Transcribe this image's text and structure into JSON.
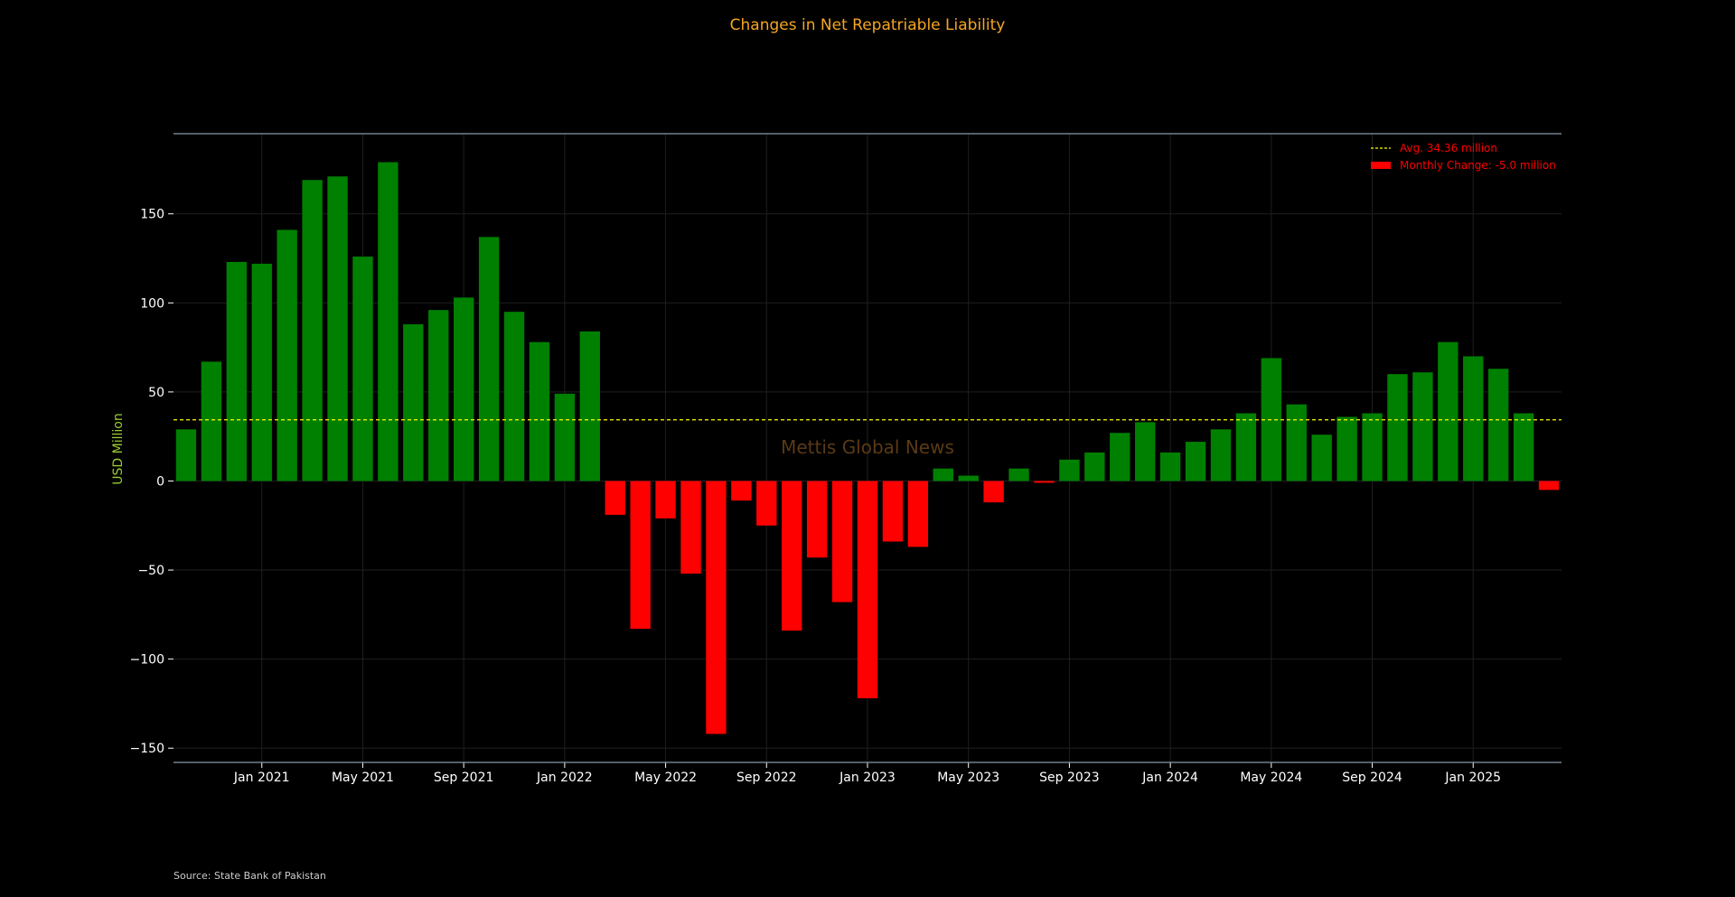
{
  "chart_data": {
    "type": "bar",
    "title": "Changes in Net Repatriable Liability",
    "ylabel": "USD Million",
    "xlabel": "",
    "ylim": [
      -158,
      195
    ],
    "yticks": [
      -150,
      -100,
      -50,
      0,
      50,
      100,
      150
    ],
    "ytick_labels": [
      "−150",
      "−100",
      "−50",
      "0",
      "50",
      "100",
      "150"
    ],
    "grid": true,
    "legend_position": "top-right",
    "x_tick_labels": [
      {
        "label": "Jan 2021",
        "index": 3
      },
      {
        "label": "May 2021",
        "index": 7
      },
      {
        "label": "Sep 2021",
        "index": 11
      },
      {
        "label": "Jan 2022",
        "index": 15
      },
      {
        "label": "May 2022",
        "index": 19
      },
      {
        "label": "Sep 2022",
        "index": 23
      },
      {
        "label": "Jan 2023",
        "index": 27
      },
      {
        "label": "May 2023",
        "index": 31
      },
      {
        "label": "Sep 2023",
        "index": 35
      },
      {
        "label": "Jan 2024",
        "index": 39
      },
      {
        "label": "May 2024",
        "index": 43
      },
      {
        "label": "Sep 2024",
        "index": 47
      },
      {
        "label": "Jan 2025",
        "index": 51
      }
    ],
    "categories": [
      "2020-10",
      "2020-11",
      "2020-12",
      "2021-01",
      "2021-02",
      "2021-03",
      "2021-04",
      "2021-05",
      "2021-06",
      "2021-07",
      "2021-08",
      "2021-09",
      "2021-10",
      "2021-11",
      "2021-12",
      "2022-01",
      "2022-02",
      "2022-03",
      "2022-04",
      "2022-05",
      "2022-06",
      "2022-07",
      "2022-08",
      "2022-09",
      "2022-10",
      "2022-11",
      "2022-12",
      "2023-01",
      "2023-02",
      "2023-03",
      "2023-04",
      "2023-05",
      "2023-06",
      "2023-07",
      "2023-08",
      "2023-09",
      "2023-10",
      "2023-11",
      "2023-12",
      "2024-01",
      "2024-02",
      "2024-03",
      "2024-04",
      "2024-05",
      "2024-06",
      "2024-07",
      "2024-08",
      "2024-09",
      "2024-10",
      "2024-11",
      "2024-12",
      "2025-01",
      "2025-02",
      "2025-03",
      "2025-04"
    ],
    "values": [
      29,
      67,
      123,
      122,
      141,
      169,
      171,
      126,
      179,
      88,
      96,
      103,
      137,
      95,
      78,
      49,
      84,
      -19,
      -83,
      -21,
      -52,
      -142,
      -11,
      -25,
      -84,
      -43,
      -68,
      -122,
      -34,
      -37,
      7,
      3,
      -12,
      7,
      -1,
      12,
      16,
      27,
      33,
      16,
      22,
      29,
      38,
      69,
      43,
      26,
      36,
      38,
      60,
      61,
      78,
      70,
      63,
      38,
      -5
    ],
    "average": 34.36,
    "legend": {
      "avg_label": "Avg. 34.36 million",
      "bar_label": "Monthly Change: -5.0 million"
    },
    "watermark": "Mettis Global News",
    "source": "Source: State Bank of Pakistan",
    "colors": {
      "positive": "#008000",
      "negative": "#ff0000",
      "average_line": "#ffff00",
      "title": "#f5a623",
      "ylabel": "#9acd32",
      "background": "#000000"
    }
  }
}
